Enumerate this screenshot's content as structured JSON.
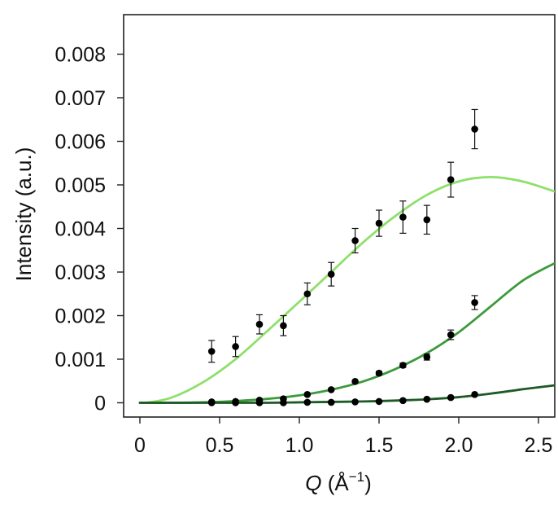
{
  "chart_data": {
    "type": "scatter",
    "xlabel_q": "Q",
    "xlabel_unit_open": " (Å",
    "xlabel_sup": "−1",
    "xlabel_unit_close": ")",
    "ylabel": "Intensity (a.u.)",
    "xlim": [
      -0.1,
      2.6
    ],
    "ylim": [
      -0.0004,
      0.0088
    ],
    "xticks": [
      0,
      0.5,
      1.0,
      1.5,
      2.0,
      2.5
    ],
    "xtick_labels": [
      "0",
      "0.5",
      "1.0",
      "1.5",
      "2.0",
      "2.5"
    ],
    "yticks": [
      0,
      0.001,
      0.002,
      0.003,
      0.004,
      0.005,
      0.006,
      0.007,
      0.008
    ],
    "ytick_labels": [
      "0",
      "0.001",
      "0.002",
      "0.003",
      "0.004",
      "0.005",
      "0.006",
      "0.007",
      "0.008"
    ],
    "grid": false,
    "series": [
      {
        "color": "#8ee06a",
        "points": [
          {
            "x": 0.45,
            "y": 0.00118,
            "err": 0.00025
          },
          {
            "x": 0.6,
            "y": 0.00129,
            "err": 0.00023
          },
          {
            "x": 0.75,
            "y": 0.0018,
            "err": 0.00022
          },
          {
            "x": 0.9,
            "y": 0.00177,
            "err": 0.00023
          },
          {
            "x": 1.05,
            "y": 0.0025,
            "err": 0.00025
          },
          {
            "x": 1.2,
            "y": 0.00295,
            "err": 0.00027
          },
          {
            "x": 1.35,
            "y": 0.00372,
            "err": 0.00028
          },
          {
            "x": 1.5,
            "y": 0.00412,
            "err": 0.0003
          },
          {
            "x": 1.65,
            "y": 0.00426,
            "err": 0.00037
          },
          {
            "x": 1.8,
            "y": 0.0042,
            "err": 0.00033
          },
          {
            "x": 1.95,
            "y": 0.00512,
            "err": 0.0004
          },
          {
            "x": 2.1,
            "y": 0.00628,
            "err": 0.00045
          }
        ],
        "fit": {
          "x": [
            0.04,
            0.2,
            0.4,
            0.6,
            0.8,
            1.0,
            1.2,
            1.4,
            1.6,
            1.8,
            2.0,
            2.2,
            2.4,
            2.6
          ],
          "y": [
            0.0,
            0.00012,
            0.00048,
            0.001,
            0.00165,
            0.00232,
            0.003,
            0.00368,
            0.00428,
            0.00477,
            0.00508,
            0.00518,
            0.00508,
            0.00485
          ]
        }
      },
      {
        "color": "#3d9a3d",
        "points": [
          {
            "x": 0.45,
            "y": 2e-05,
            "err": 0
          },
          {
            "x": 0.6,
            "y": 3e-05,
            "err": 0
          },
          {
            "x": 0.75,
            "y": 6e-05,
            "err": 0
          },
          {
            "x": 0.9,
            "y": 9e-05,
            "err": 0
          },
          {
            "x": 1.05,
            "y": 0.00019,
            "err": 0
          },
          {
            "x": 1.2,
            "y": 0.0003,
            "err": 0
          },
          {
            "x": 1.35,
            "y": 0.00049,
            "err": 0
          },
          {
            "x": 1.5,
            "y": 0.00068,
            "err": 4e-05
          },
          {
            "x": 1.65,
            "y": 0.00086,
            "err": 5e-05
          },
          {
            "x": 1.8,
            "y": 0.00105,
            "err": 7e-05
          },
          {
            "x": 1.95,
            "y": 0.00156,
            "err": 0.00011
          },
          {
            "x": 2.1,
            "y": 0.0023,
            "err": 0.00016
          }
        ],
        "fit": {
          "x": [
            0.0,
            0.2,
            0.4,
            0.6,
            0.8,
            1.0,
            1.2,
            1.4,
            1.6,
            1.8,
            2.0,
            2.2,
            2.4,
            2.6
          ],
          "y": [
            0.0,
            0.0,
            1e-05,
            4e-05,
            9e-05,
            0.00017,
            0.0003,
            0.00049,
            0.00077,
            0.00114,
            0.00162,
            0.00221,
            0.0028,
            0.0032
          ]
        }
      },
      {
        "color": "#1e5a25",
        "points": [
          {
            "x": 0.45,
            "y": 0.0,
            "err": 0
          },
          {
            "x": 0.6,
            "y": 0.0,
            "err": 0
          },
          {
            "x": 0.75,
            "y": 0.0,
            "err": 0
          },
          {
            "x": 0.9,
            "y": 0.0,
            "err": 0
          },
          {
            "x": 1.05,
            "y": 1e-05,
            "err": 0
          },
          {
            "x": 1.2,
            "y": 1e-05,
            "err": 0
          },
          {
            "x": 1.35,
            "y": 2e-05,
            "err": 0
          },
          {
            "x": 1.5,
            "y": 3e-05,
            "err": 0
          },
          {
            "x": 1.65,
            "y": 5e-05,
            "err": 0
          },
          {
            "x": 1.8,
            "y": 8e-05,
            "err": 0
          },
          {
            "x": 1.95,
            "y": 0.00012,
            "err": 0
          },
          {
            "x": 2.1,
            "y": 0.00019,
            "err": 0
          }
        ],
        "fit": {
          "x": [
            0.0,
            0.4,
            0.8,
            1.0,
            1.2,
            1.4,
            1.6,
            1.8,
            2.0,
            2.2,
            2.4,
            2.6
          ],
          "y": [
            0.0,
            0.0,
            0.0,
            1e-05,
            2e-05,
            3e-05,
            5e-05,
            8e-05,
            0.00013,
            0.00021,
            0.00031,
            0.0004
          ]
        }
      }
    ]
  }
}
